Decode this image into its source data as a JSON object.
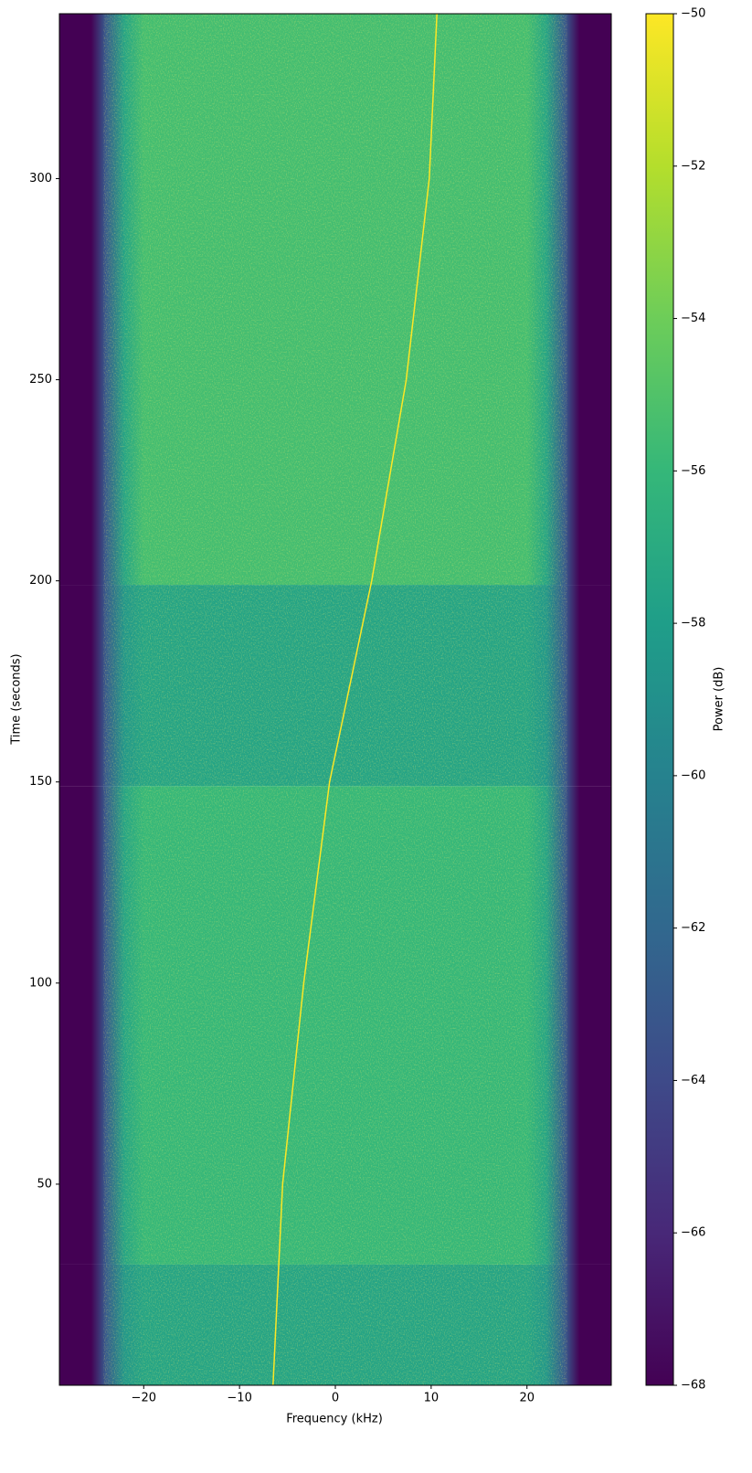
{
  "chart_data": {
    "type": "spectrogram",
    "x_label": "Frequency (kHz)",
    "y_label": "Time (seconds)",
    "colorbar_label": "Power (dB)",
    "colormap": "viridis",
    "xlim": [
      -28.8,
      28.8
    ],
    "xticks": [
      {
        "value": -20,
        "label": "−20"
      },
      {
        "value": -10,
        "label": "−10"
      },
      0,
      10,
      20
    ],
    "ylim": [
      0,
      341
    ],
    "yticks": [
      50,
      100,
      150,
      200,
      250,
      300
    ],
    "clim": [
      -68,
      -50
    ],
    "cticks": [
      {
        "value": -68,
        "label": "−68"
      },
      {
        "value": -66,
        "label": "−66"
      },
      {
        "value": -64,
        "label": "−64"
      },
      {
        "value": -62,
        "label": "−62"
      },
      {
        "value": -60,
        "label": "−60"
      },
      {
        "value": -58,
        "label": "−58"
      },
      {
        "value": -56,
        "label": "−56"
      },
      {
        "value": -54,
        "label": "−54"
      },
      {
        "value": -52,
        "label": "−52"
      },
      {
        "value": -50,
        "label": "−50"
      }
    ],
    "profile_freq": [
      -28.8,
      -25.5,
      -24,
      -22,
      -20,
      20,
      22,
      24,
      25.5,
      28.8
    ],
    "blocks": [
      {
        "time": [
          0,
          30
        ],
        "values": [
          -68,
          -68,
          -63,
          -58.5,
          -57.5,
          -57.5,
          -58.5,
          -63,
          -68,
          -68
        ]
      },
      {
        "time": [
          30,
          149
        ],
        "values": [
          -68,
          -68,
          -63,
          -57.5,
          -56,
          -56,
          -57.5,
          -63,
          -68,
          -68
        ]
      },
      {
        "time": [
          149,
          199
        ],
        "values": [
          -68,
          -68,
          -63,
          -58.5,
          -57.5,
          -57.5,
          -58.5,
          -63,
          -68,
          -68
        ]
      },
      {
        "time": [
          199,
          341
        ],
        "values": [
          -68,
          -68,
          -63,
          -57.5,
          -55.5,
          -55.5,
          -57.5,
          -63,
          -68,
          -68
        ]
      }
    ],
    "trace": {
      "color": "#fde725",
      "x": [
        -6.5,
        -5.5,
        -3.3,
        -0.6,
        3.8,
        7.4,
        9.8,
        10.6
      ],
      "y": [
        0,
        50,
        100,
        150,
        200,
        250,
        300,
        341
      ]
    }
  }
}
